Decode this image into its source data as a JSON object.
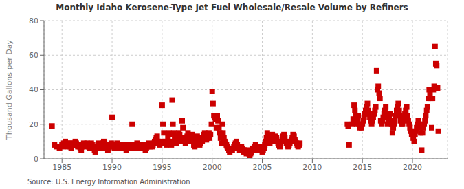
{
  "chart_data": {
    "type": "scatter",
    "title": "Monthly Idaho Kerosene-Type Jet Fuel Wholesale/Resale Volume by Refiners",
    "ylabel": "Thousand Gallons per Day",
    "annotation": "Source: U.S. Energy Information Administration",
    "color": "#cc0000",
    "marker": "square",
    "grid": true,
    "xlim": [
      1983.2,
      2023.5
    ],
    "xticks": [
      1985,
      1990,
      1995,
      2000,
      2005,
      2010,
      2015,
      2020
    ],
    "ylim": [
      0,
      80
    ],
    "yticks": [
      0,
      20,
      40,
      60,
      80
    ],
    "x": [
      1984.0,
      1984.25,
      1984.5,
      1984.75,
      1985.0,
      1985.08,
      1985.17,
      1985.25,
      1985.33,
      1985.42,
      1985.5,
      1985.58,
      1985.67,
      1985.75,
      1985.83,
      1985.92,
      1986.0,
      1986.08,
      1986.17,
      1986.25,
      1986.33,
      1986.42,
      1986.5,
      1986.58,
      1986.67,
      1986.75,
      1986.83,
      1986.92,
      1987.0,
      1987.08,
      1987.17,
      1987.25,
      1987.33,
      1987.42,
      1987.5,
      1987.58,
      1987.67,
      1987.75,
      1987.83,
      1987.92,
      1988.0,
      1988.08,
      1988.17,
      1988.25,
      1988.33,
      1988.42,
      1988.5,
      1988.58,
      1988.67,
      1988.75,
      1988.83,
      1988.92,
      1989.0,
      1989.08,
      1989.17,
      1989.25,
      1989.33,
      1989.42,
      1989.5,
      1989.58,
      1989.67,
      1989.75,
      1989.83,
      1989.92,
      1990.0,
      1990.08,
      1990.17,
      1990.25,
      1990.33,
      1990.42,
      1990.5,
      1990.58,
      1990.67,
      1990.75,
      1990.83,
      1990.92,
      1991.0,
      1991.08,
      1991.17,
      1991.25,
      1991.33,
      1991.42,
      1991.5,
      1991.58,
      1991.67,
      1991.75,
      1991.83,
      1991.92,
      1992.0,
      1992.08,
      1992.17,
      1992.25,
      1992.33,
      1992.42,
      1992.5,
      1992.58,
      1992.67,
      1992.75,
      1992.83,
      1992.92,
      1993.0,
      1993.08,
      1993.17,
      1993.25,
      1993.33,
      1993.42,
      1993.5,
      1993.58,
      1993.67,
      1993.75,
      1993.83,
      1993.92,
      1994.0,
      1994.08,
      1994.17,
      1994.25,
      1994.33,
      1994.42,
      1994.5,
      1994.58,
      1994.67,
      1994.75,
      1994.83,
      1994.92,
      1995.0,
      1995.08,
      1995.17,
      1995.25,
      1995.33,
      1995.42,
      1995.5,
      1995.58,
      1995.67,
      1995.75,
      1995.83,
      1995.92,
      1996.0,
      1996.08,
      1996.17,
      1996.25,
      1996.33,
      1996.42,
      1996.5,
      1996.58,
      1996.67,
      1996.75,
      1996.83,
      1996.92,
      1997.0,
      1997.08,
      1997.17,
      1997.25,
      1997.33,
      1997.42,
      1997.5,
      1997.58,
      1997.67,
      1997.75,
      1997.83,
      1997.92,
      1998.0,
      1998.08,
      1998.17,
      1998.25,
      1998.33,
      1998.42,
      1998.5,
      1998.58,
      1998.67,
      1998.75,
      1998.83,
      1998.92,
      1999.0,
      1999.08,
      1999.17,
      1999.25,
      1999.33,
      1999.42,
      1999.5,
      1999.58,
      1999.67,
      1999.75,
      1999.83,
      1999.92,
      2000.0,
      2000.08,
      2000.17,
      2000.25,
      2000.33,
      2000.42,
      2000.5,
      2000.58,
      2000.67,
      2000.75,
      2000.83,
      2000.92,
      2001.0,
      2001.08,
      2001.17,
      2001.25,
      2001.33,
      2001.42,
      2001.5,
      2001.58,
      2001.67,
      2001.75,
      2001.83,
      2001.92,
      2002.0,
      2002.08,
      2002.17,
      2002.25,
      2002.33,
      2002.42,
      2002.5,
      2002.58,
      2002.67,
      2002.75,
      2002.83,
      2002.92,
      2003.0,
      2003.08,
      2003.17,
      2003.25,
      2003.33,
      2003.42,
      2003.5,
      2003.58,
      2003.67,
      2003.75,
      2003.83,
      2003.92,
      2004.0,
      2004.08,
      2004.17,
      2004.25,
      2004.33,
      2004.42,
      2004.5,
      2004.58,
      2004.67,
      2004.75,
      2004.83,
      2004.92,
      2005.0,
      2005.08,
      2005.17,
      2005.25,
      2005.33,
      2005.42,
      2005.5,
      2005.58,
      2005.67,
      2005.75,
      2005.83,
      2005.92,
      2006.0,
      2006.08,
      2006.17,
      2006.25,
      2006.33,
      2006.42,
      2006.5,
      2006.58,
      2006.67,
      2006.75,
      2006.83,
      2006.92,
      2007.0,
      2007.08,
      2007.17,
      2007.25,
      2007.33,
      2007.42,
      2007.5,
      2007.58,
      2007.67,
      2007.75,
      2007.83,
      2007.92,
      2008.0,
      2008.08,
      2008.17,
      2008.25,
      2008.33,
      2008.42,
      2008.5,
      2008.58,
      2008.67,
      2008.75,
      2013.5,
      2013.58,
      2013.67,
      2014.0,
      2014.08,
      2014.17,
      2014.25,
      2014.33,
      2014.42,
      2014.5,
      2014.58,
      2014.67,
      2014.75,
      2014.83,
      2014.92,
      2015.0,
      2015.08,
      2015.17,
      2015.25,
      2015.33,
      2015.42,
      2015.5,
      2015.58,
      2015.67,
      2015.75,
      2015.83,
      2015.92,
      2016.0,
      2016.08,
      2016.17,
      2016.25,
      2016.33,
      2016.42,
      2016.5,
      2016.58,
      2016.67,
      2016.75,
      2016.83,
      2016.92,
      2017.0,
      2017.08,
      2017.17,
      2017.25,
      2017.33,
      2017.42,
      2017.5,
      2017.58,
      2017.67,
      2017.75,
      2017.83,
      2017.92,
      2018.0,
      2018.08,
      2018.17,
      2018.25,
      2018.33,
      2018.42,
      2018.5,
      2018.58,
      2018.67,
      2018.75,
      2018.83,
      2018.92,
      2019.0,
      2019.08,
      2019.17,
      2019.25,
      2019.33,
      2019.42,
      2019.5,
      2019.58,
      2019.67,
      2019.75,
      2019.83,
      2019.92,
      2020.0,
      2020.08,
      2020.17,
      2020.25,
      2020.33,
      2020.42,
      2020.5,
      2020.58,
      2020.67,
      2020.75,
      2020.83,
      2020.92,
      2021.0,
      2021.08,
      2021.17,
      2021.25,
      2021.33,
      2021.42,
      2021.5,
      2021.58,
      2021.67,
      2021.75,
      2021.83,
      2021.92,
      2022.0,
      2022.08,
      2022.17,
      2022.25,
      2022.33,
      2022.42,
      2022.5,
      2022.58
    ],
    "values": [
      19,
      8,
      7,
      6,
      8,
      7,
      9,
      8,
      10,
      9,
      8,
      7,
      9,
      8,
      7,
      6,
      9,
      8,
      9,
      8,
      10,
      9,
      8,
      7,
      8,
      7,
      6,
      5,
      7,
      8,
      9,
      8,
      7,
      8,
      9,
      8,
      7,
      6,
      8,
      9,
      8,
      7,
      6,
      5,
      4,
      6,
      7,
      8,
      9,
      8,
      7,
      6,
      8,
      9,
      10,
      9,
      8,
      7,
      6,
      5,
      6,
      7,
      8,
      9,
      24,
      8,
      7,
      6,
      7,
      8,
      9,
      8,
      7,
      6,
      8,
      7,
      6,
      7,
      8,
      7,
      6,
      5,
      6,
      7,
      8,
      7,
      6,
      7,
      20,
      8,
      7,
      6,
      7,
      8,
      9,
      8,
      7,
      6,
      8,
      7,
      7,
      8,
      7,
      6,
      5,
      6,
      7,
      8,
      9,
      8,
      7,
      8,
      7,
      8,
      9,
      10,
      11,
      12,
      13,
      10,
      9,
      8,
      9,
      10,
      31,
      20,
      15,
      10,
      9,
      8,
      10,
      12,
      15,
      14,
      10,
      8,
      34,
      20,
      15,
      12,
      10,
      9,
      11,
      13,
      15,
      14,
      12,
      10,
      22,
      18,
      12,
      10,
      9,
      11,
      13,
      15,
      12,
      10,
      12,
      11,
      14,
      10,
      8,
      7,
      9,
      11,
      13,
      12,
      10,
      8,
      9,
      10,
      10,
      12,
      14,
      15,
      13,
      11,
      12,
      14,
      15,
      12,
      14,
      20,
      39,
      32,
      25,
      24,
      23,
      18,
      25,
      22,
      18,
      15,
      12,
      9,
      20,
      15,
      12,
      10,
      9,
      8,
      7,
      6,
      5,
      4,
      5,
      6,
      5,
      6,
      7,
      8,
      9,
      10,
      8,
      7,
      6,
      5,
      6,
      7,
      6,
      5,
      4,
      5,
      4,
      3,
      4,
      5,
      3,
      2,
      3,
      4,
      6,
      5,
      6,
      7,
      8,
      7,
      6,
      5,
      6,
      7,
      6,
      5,
      4,
      5,
      6,
      8,
      10,
      12,
      15,
      13,
      11,
      9,
      10,
      11,
      14,
      12,
      10,
      11,
      13,
      12,
      10,
      9,
      8,
      7,
      9,
      10,
      11,
      13,
      14,
      12,
      10,
      9,
      8,
      7,
      8,
      9,
      10,
      11,
      12,
      14,
      13,
      11,
      10,
      9,
      8,
      7,
      8,
      9,
      20,
      19,
      8,
      20,
      23,
      31,
      28,
      25,
      20,
      22,
      25,
      20,
      18,
      20,
      18,
      20,
      22,
      24,
      26,
      28,
      30,
      32,
      28,
      26,
      24,
      22,
      20,
      22,
      24,
      26,
      28,
      30,
      51,
      40,
      42,
      38,
      35,
      22,
      20,
      22,
      24,
      26,
      28,
      30,
      25,
      20,
      22,
      24,
      26,
      22,
      20,
      15,
      18,
      20,
      22,
      25,
      28,
      30,
      32,
      28,
      25,
      22,
      20,
      20,
      22,
      24,
      26,
      28,
      30,
      25,
      22,
      20,
      18,
      16,
      14,
      15,
      12,
      10,
      14,
      16,
      18,
      20,
      22,
      20,
      18,
      15,
      5,
      15,
      18,
      20,
      22,
      25,
      28,
      30,
      35,
      40,
      38,
      35,
      18,
      35,
      40,
      42,
      65,
      55,
      54,
      41,
      16
    ]
  }
}
